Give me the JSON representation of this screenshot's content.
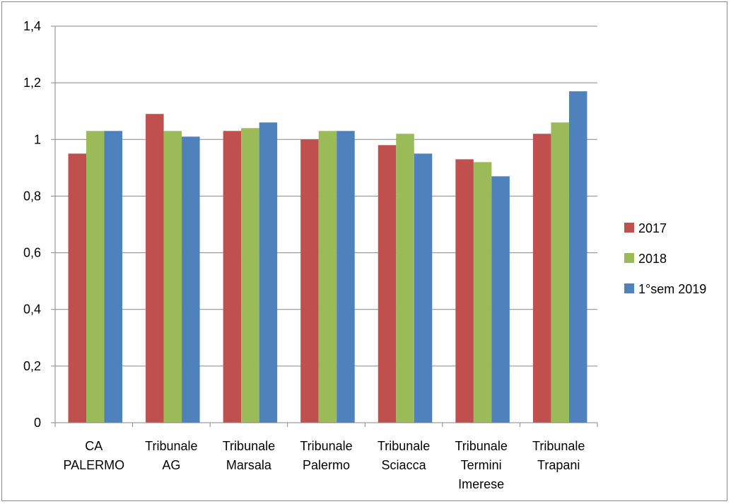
{
  "chart_data": {
    "type": "bar",
    "categories": [
      [
        "CA",
        "PALERMO"
      ],
      [
        "Tribunale",
        "AG"
      ],
      [
        "Tribunale",
        "Marsala"
      ],
      [
        "Tribunale",
        "Palermo"
      ],
      [
        "Tribunale",
        "Sciacca"
      ],
      [
        "Tribunale",
        "Termini",
        "Imerese"
      ],
      [
        "Tribunale",
        "Trapani"
      ]
    ],
    "series": [
      {
        "name": "2017",
        "color": "#c0504d",
        "values": [
          0.95,
          1.09,
          1.03,
          1.0,
          0.98,
          0.93,
          1.02
        ]
      },
      {
        "name": "2018",
        "color": "#9bbb59",
        "values": [
          1.03,
          1.03,
          1.04,
          1.03,
          1.02,
          0.92,
          1.06
        ]
      },
      {
        "name": "1°sem 2019",
        "color": "#4f81bd",
        "values": [
          1.03,
          1.01,
          1.06,
          1.03,
          0.95,
          0.87,
          1.17
        ]
      }
    ],
    "ylim": [
      0,
      1.4
    ],
    "yticks": [
      "0",
      "0,2",
      "0,4",
      "0,6",
      "0,8",
      "1",
      "1,2",
      "1,4"
    ],
    "grid": true,
    "legend_position": "right"
  }
}
